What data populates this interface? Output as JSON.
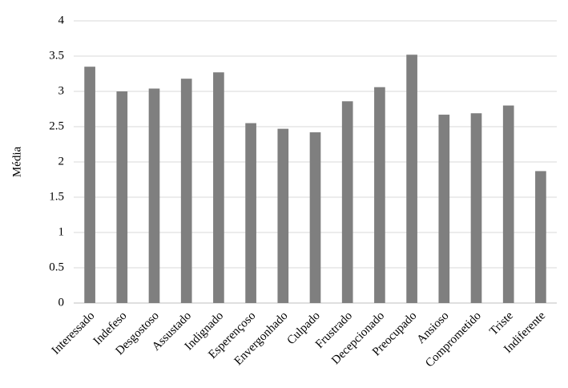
{
  "chart_data": {
    "type": "bar",
    "y_label": "Média",
    "categories": [
      "Interessado",
      "Indefeso",
      "Desgostoso",
      "Assustado",
      "Indignado",
      "Esperençoso",
      "Envergonhado",
      "Culpado",
      "Frustrado",
      "Decepcionado",
      "Preocupado",
      "Ansioso",
      "Comprometido",
      "Triste",
      "Indiferente"
    ],
    "values": [
      3.35,
      3.0,
      3.04,
      3.18,
      3.27,
      2.55,
      2.47,
      2.42,
      2.86,
      3.06,
      3.52,
      2.67,
      2.69,
      2.8,
      1.87
    ],
    "color": "#7f7f7f",
    "ylim": [
      0,
      4
    ],
    "yticks": [
      0,
      0.5,
      1,
      1.5,
      2,
      2.5,
      3,
      3.5,
      4
    ],
    "grid": true
  }
}
